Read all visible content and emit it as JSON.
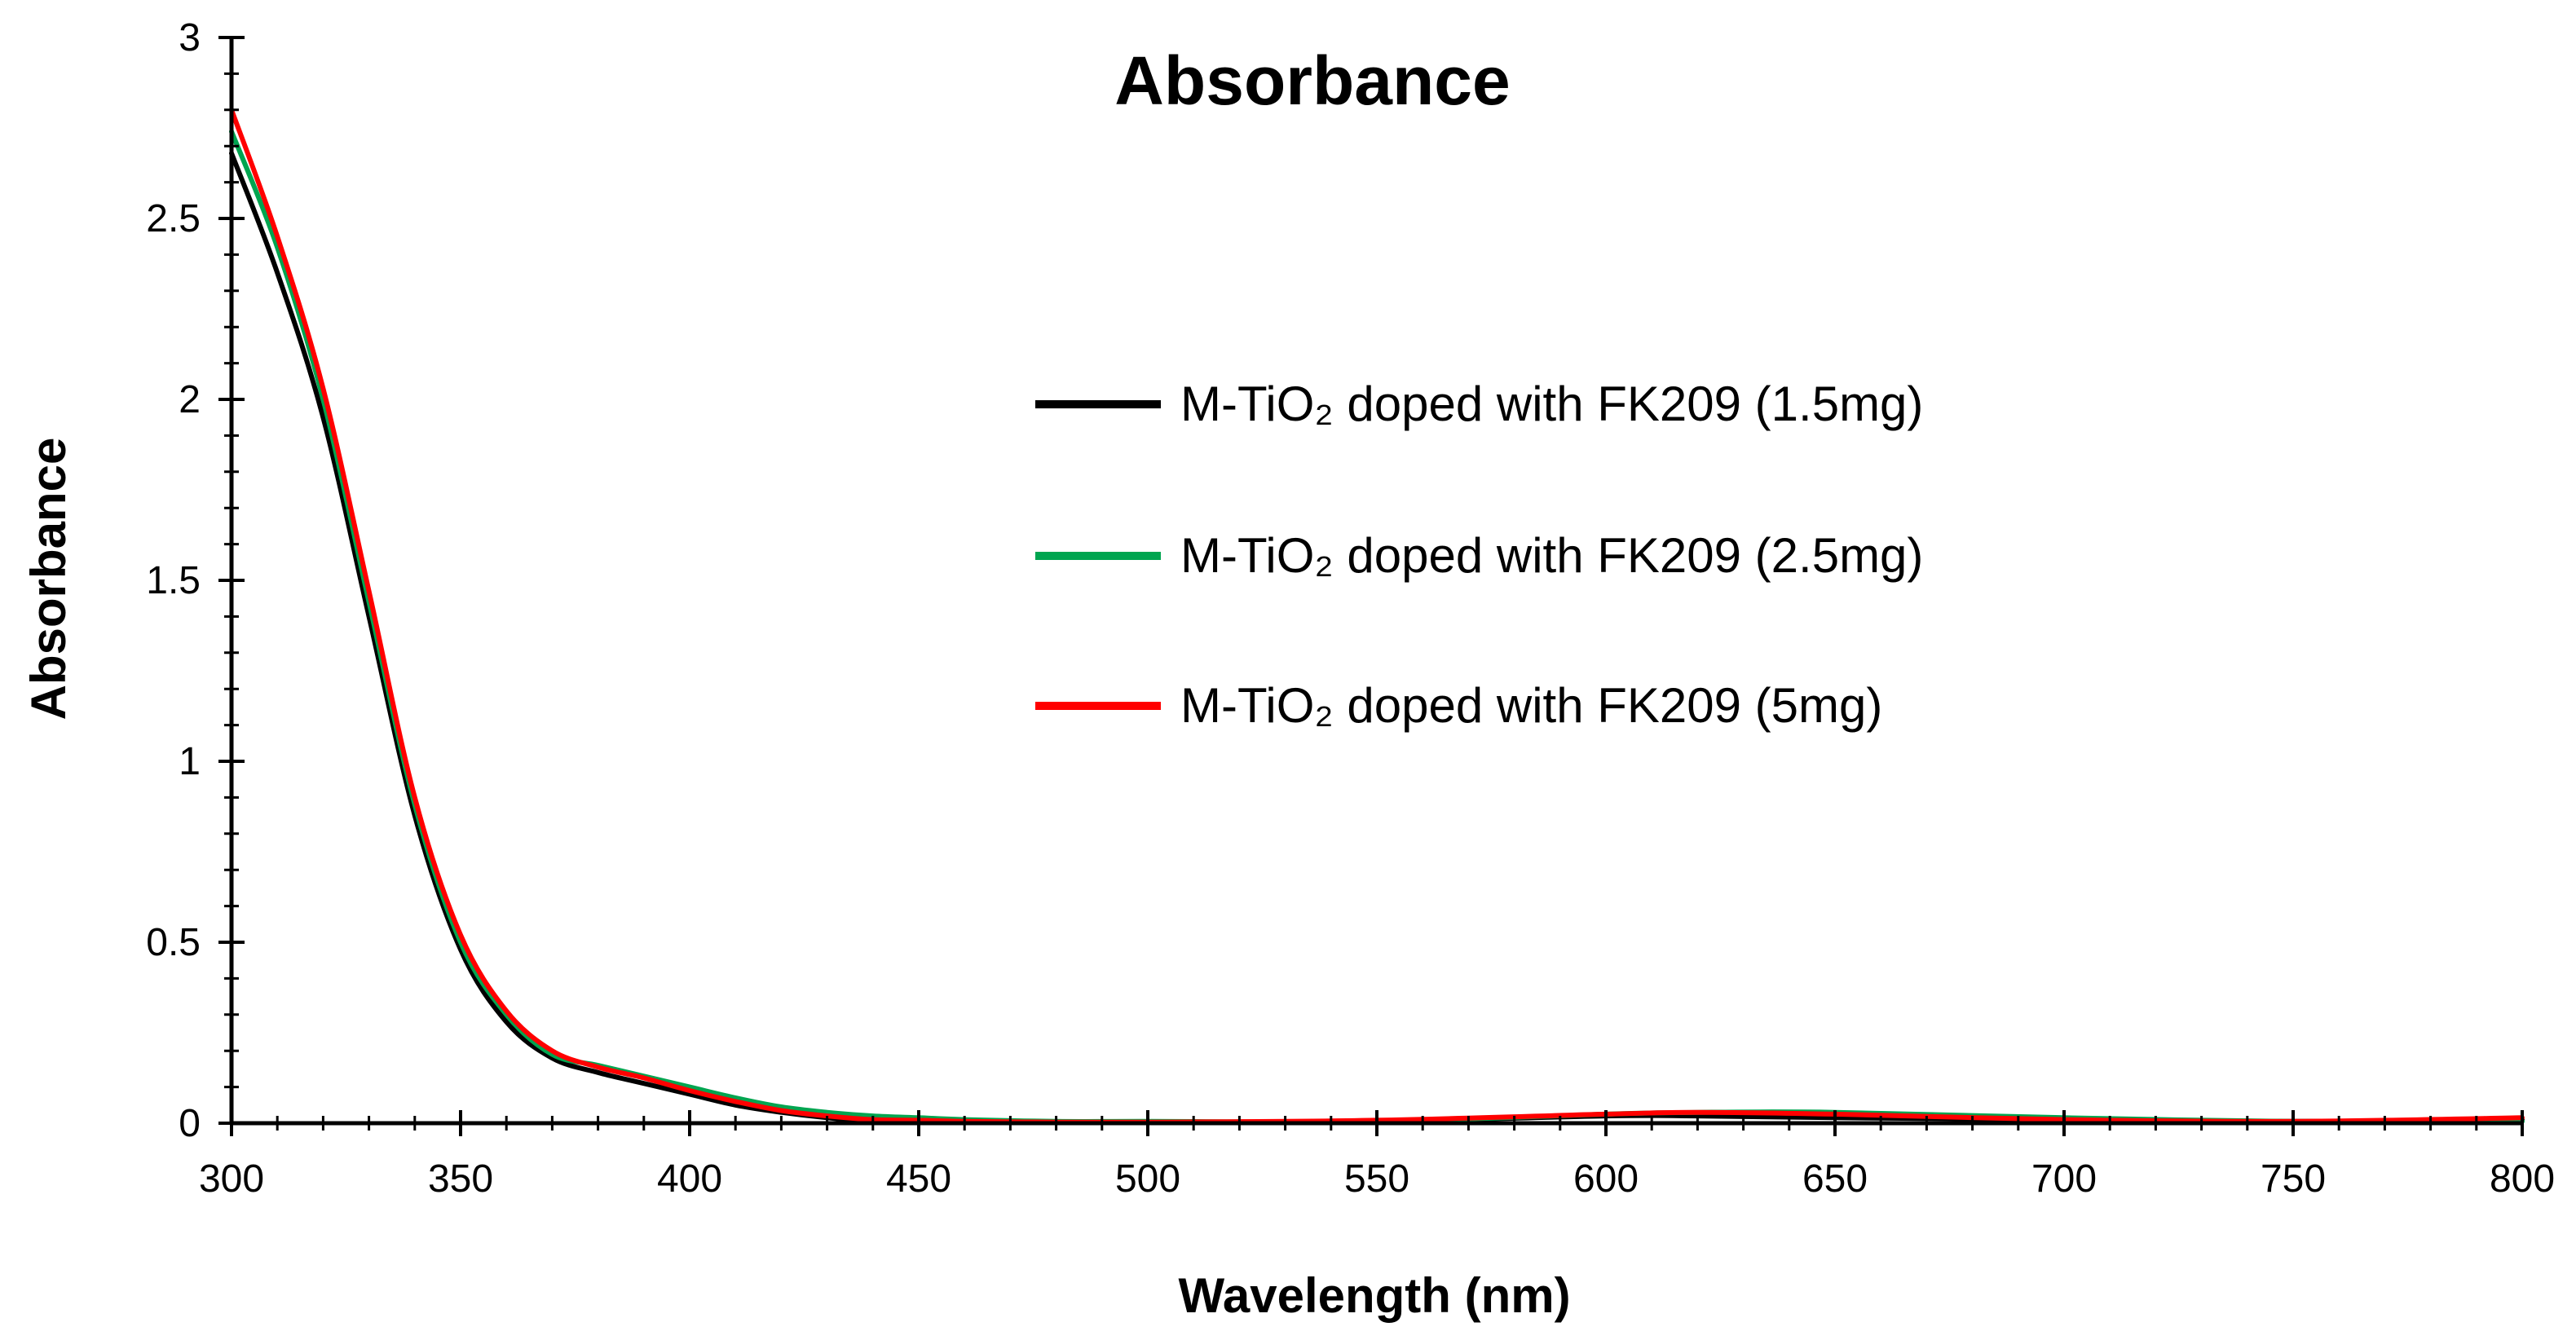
{
  "chart_data": {
    "type": "line",
    "title": "Absorbance",
    "xlabel": "Wavelength (nm)",
    "ylabel": "Absorbance",
    "xlim": [
      300,
      800
    ],
    "ylim": [
      0,
      3
    ],
    "x_ticks": [
      "300",
      "350",
      "400",
      "450",
      "500",
      "550",
      "600",
      "650",
      "700",
      "750",
      "800"
    ],
    "y_ticks": [
      "0",
      "0.5",
      "1",
      "1.5",
      "2",
      "2.5",
      "3"
    ],
    "grid": false,
    "legend_position": "right",
    "series": [
      {
        "name": "M-TiO₂ doped with FK209 (1.5mg)",
        "color": "#000000",
        "x": [
          300,
          310,
          320,
          330,
          340,
          350,
          360,
          370,
          380,
          390,
          400,
          410,
          420,
          430,
          440,
          450,
          460,
          480,
          500,
          550,
          600,
          620,
          650,
          700,
          750,
          800
        ],
        "y": [
          2.68,
          2.35,
          1.95,
          1.4,
          0.85,
          0.48,
          0.28,
          0.18,
          0.14,
          0.11,
          0.08,
          0.05,
          0.03,
          0.015,
          0.005,
          0.003,
          0.003,
          0.003,
          0.003,
          0.005,
          0.02,
          0.02,
          0.015,
          0.01,
          0.005,
          0.01
        ]
      },
      {
        "name": "M-TiO₂ doped with FK209 (2.5mg)",
        "color": "#00a550",
        "x": [
          300,
          310,
          320,
          330,
          340,
          350,
          360,
          370,
          380,
          390,
          400,
          410,
          420,
          430,
          440,
          450,
          460,
          480,
          500,
          550,
          600,
          620,
          650,
          700,
          750,
          800
        ],
        "y": [
          2.74,
          2.42,
          2.0,
          1.44,
          0.88,
          0.5,
          0.3,
          0.19,
          0.16,
          0.13,
          0.1,
          0.07,
          0.045,
          0.03,
          0.02,
          0.015,
          0.01,
          0.005,
          0.005,
          0.005,
          0.025,
          0.03,
          0.03,
          0.015,
          0.005,
          0.005
        ]
      },
      {
        "name": "M-TiO₂ doped with FK209 (5mg)",
        "color": "#ff0000",
        "x": [
          300,
          310,
          320,
          330,
          340,
          350,
          360,
          370,
          380,
          390,
          400,
          410,
          420,
          430,
          440,
          450,
          460,
          480,
          500,
          550,
          600,
          620,
          650,
          700,
          750,
          800
        ],
        "y": [
          2.8,
          2.45,
          2.03,
          1.47,
          0.9,
          0.52,
          0.31,
          0.2,
          0.155,
          0.125,
          0.09,
          0.06,
          0.035,
          0.02,
          0.01,
          0.008,
          0.005,
          0.003,
          0.003,
          0.008,
          0.025,
          0.03,
          0.025,
          0.01,
          0.005,
          0.015
        ]
      }
    ]
  }
}
